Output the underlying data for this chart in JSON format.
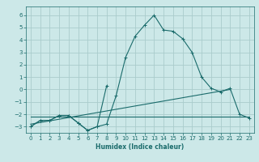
{
  "xlabel": "Humidex (Indice chaleur)",
  "bg_color": "#cce8e8",
  "grid_color": "#aacccc",
  "line_color": "#1a6b6b",
  "xlim": [
    -0.5,
    23.5
  ],
  "ylim": [
    -3.5,
    6.7
  ],
  "xticks": [
    0,
    1,
    2,
    3,
    4,
    5,
    6,
    7,
    8,
    9,
    10,
    11,
    12,
    13,
    14,
    15,
    16,
    17,
    18,
    19,
    20,
    21,
    22,
    23
  ],
  "yticks": [
    -3,
    -2,
    -1,
    0,
    1,
    2,
    3,
    4,
    5,
    6
  ],
  "line1_x": [
    0,
    1,
    2,
    3,
    4,
    5,
    6,
    7,
    8,
    9,
    10,
    11,
    12,
    13,
    14,
    15,
    16,
    17,
    18,
    19,
    20,
    21,
    22,
    23
  ],
  "line1_y": [
    -3.0,
    -2.5,
    -2.5,
    -2.1,
    -2.1,
    -2.7,
    -3.3,
    -3.0,
    -2.8,
    -0.5,
    2.6,
    4.3,
    5.2,
    6.0,
    4.8,
    4.7,
    4.1,
    3.0,
    1.0,
    0.1,
    -0.2,
    0.1,
    -2.0,
    -2.3
  ],
  "line2_x": [
    0,
    1,
    2,
    3,
    4,
    5,
    6,
    7,
    8
  ],
  "line2_y": [
    -3.0,
    -2.5,
    -2.5,
    -2.1,
    -2.1,
    -2.7,
    -3.3,
    -3.0,
    0.3
  ],
  "line3_x": [
    0,
    1,
    2,
    3,
    4,
    5,
    6,
    7,
    8,
    9,
    10,
    11,
    12,
    13,
    14,
    15,
    16,
    17,
    18,
    19,
    20,
    21,
    22,
    23
  ],
  "line3_y": [
    -2.2,
    -2.2,
    -2.2,
    -2.2,
    -2.2,
    -2.2,
    -2.2,
    -2.2,
    -2.2,
    -2.2,
    -2.2,
    -2.2,
    -2.2,
    -2.2,
    -2.2,
    -2.2,
    -2.2,
    -2.2,
    -2.2,
    -2.2,
    -2.2,
    -2.2,
    -2.2,
    -2.2
  ],
  "line4_x": [
    0,
    21
  ],
  "line4_y": [
    -2.8,
    0.0
  ]
}
